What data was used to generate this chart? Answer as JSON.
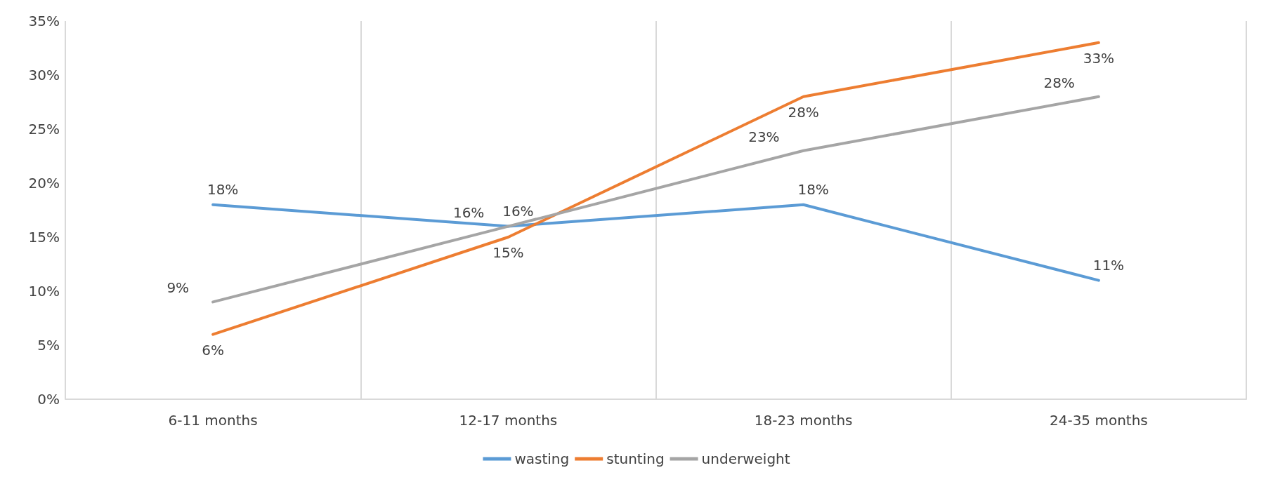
{
  "chart_data": {
    "type": "line",
    "categories": [
      "6-11 months",
      "12-17 months",
      "18-23 months",
      "24-35 months"
    ],
    "series": [
      {
        "name": "wasting",
        "color": "#5b9bd5",
        "values": [
          18,
          16,
          18,
          11
        ],
        "value_labels": [
          "18%",
          "16%",
          "18%",
          "11%"
        ]
      },
      {
        "name": "stunting",
        "color": "#ed7d31",
        "values": [
          6,
          15,
          28,
          33
        ],
        "value_labels": [
          "6%",
          "15%",
          "28%",
          "33%"
        ]
      },
      {
        "name": "underweight",
        "color": "#a5a5a5",
        "values": [
          9,
          16,
          23,
          28
        ],
        "value_labels": [
          "9%",
          "16%",
          "23%",
          "28%"
        ]
      }
    ],
    "ylim": [
      0,
      35
    ],
    "yticks": [
      {
        "value": 0,
        "label": "0%"
      },
      {
        "value": 5,
        "label": "5%"
      },
      {
        "value": 10,
        "label": "10%"
      },
      {
        "value": 15,
        "label": "15%"
      },
      {
        "value": 20,
        "label": "20%"
      },
      {
        "value": 25,
        "label": "25%"
      },
      {
        "value": 30,
        "label": "30%"
      },
      {
        "value": 35,
        "label": "35%"
      }
    ],
    "grid": "x",
    "legend": "bottom",
    "marker": "none",
    "line_style": "solid"
  }
}
